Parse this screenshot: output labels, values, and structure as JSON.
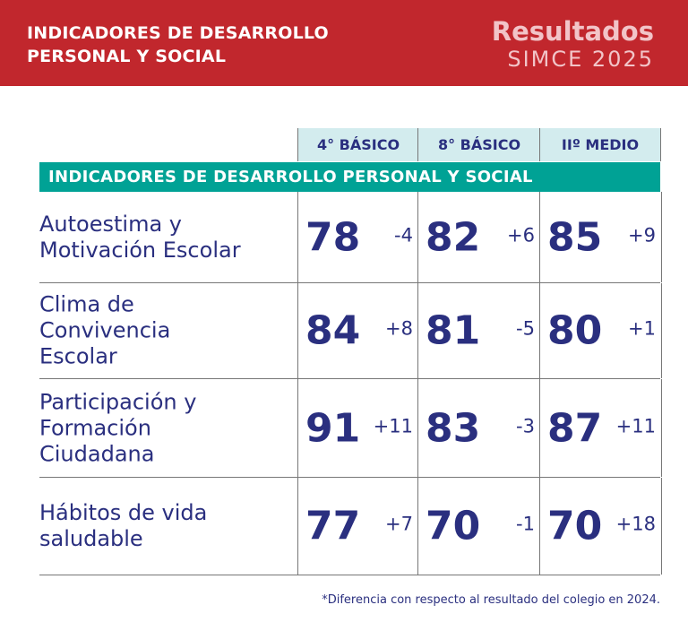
{
  "header": {
    "title_line1": "INDICADORES DE DESARROLLO",
    "title_line2": "PERSONAL Y SOCIAL",
    "brand_line1": "Resultados",
    "brand_line2": "SIMCE 2025",
    "color": "#c1272d"
  },
  "columns": [
    "4° BÁSICO",
    "8° BÁSICO",
    "IIº MEDIO"
  ],
  "section_title": "INDICADORES DE DESARROLLO PERSONAL Y SOCIAL",
  "rows": [
    {
      "label": "Autoestima y Motivación Escolar",
      "values": [
        {
          "score": "78",
          "diff": "-4"
        },
        {
          "score": "82",
          "diff": "+6"
        },
        {
          "score": "85",
          "diff": "+9"
        }
      ]
    },
    {
      "label": "Clima de Convivencia Escolar",
      "values": [
        {
          "score": "84",
          "diff": "+8"
        },
        {
          "score": "81",
          "diff": "-5"
        },
        {
          "score": "80",
          "diff": "+1"
        }
      ]
    },
    {
      "label": "Participación y Formación Ciudadana",
      "values": [
        {
          "score": "91",
          "diff": "+11"
        },
        {
          "score": "83",
          "diff": "-3"
        },
        {
          "score": "87",
          "diff": "+11"
        }
      ]
    },
    {
      "label": "Hábitos de vida saludable",
      "values": [
        {
          "score": "77",
          "diff": "+7"
        },
        {
          "score": "70",
          "diff": "-1"
        },
        {
          "score": "70",
          "diff": "+18"
        }
      ]
    }
  ],
  "footnote": "*Diferencia con respecto al resultado del colegio en 2024."
}
